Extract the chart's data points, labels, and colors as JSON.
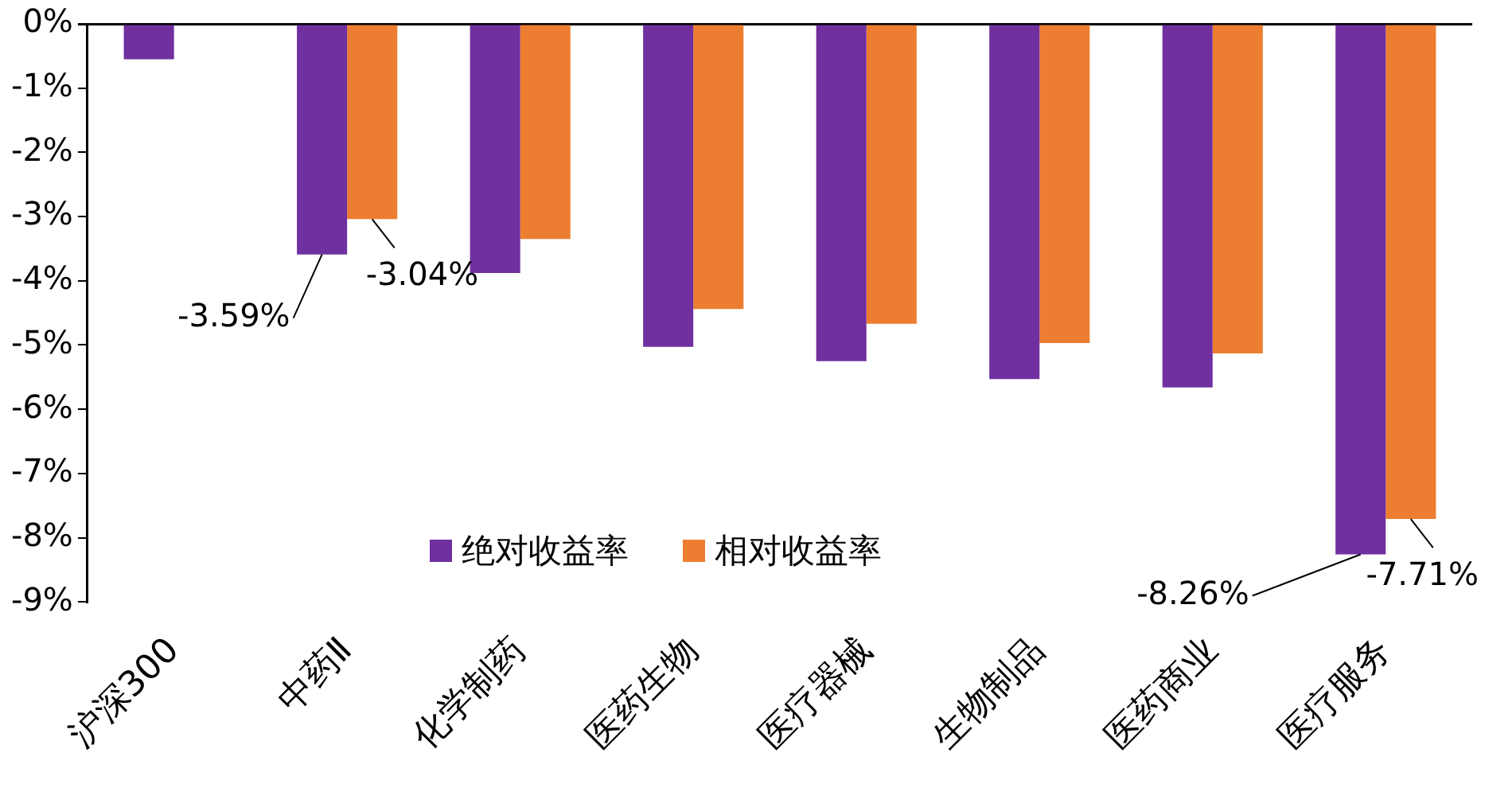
{
  "chart_data": {
    "type": "bar",
    "categories": [
      "沪深300",
      "中药Ⅱ",
      "化学制药",
      "医药生物",
      "医疗器械",
      "生物制品",
      "医药商业",
      "医疗服务"
    ],
    "series": [
      {
        "name": "绝对收益率",
        "color": "#7030a0",
        "values": [
          -0.55,
          -3.59,
          -3.88,
          -5.03,
          -5.25,
          -5.53,
          -5.66,
          -8.26
        ],
        "value_labels": [
          null,
          "-3.59%",
          null,
          null,
          null,
          null,
          null,
          "-8.26%"
        ]
      },
      {
        "name": "相对收益率",
        "color": "#ed7d31",
        "values": [
          null,
          -3.04,
          -3.35,
          -4.44,
          -4.67,
          -4.97,
          -5.13,
          -7.71
        ],
        "value_labels": [
          null,
          "-3.04%",
          null,
          null,
          null,
          null,
          null,
          "-7.71%"
        ]
      }
    ],
    "ylim": [
      -9,
      0
    ],
    "yticks": [
      {
        "value": 0,
        "label": "0%"
      },
      {
        "value": -1,
        "label": "-1%"
      },
      {
        "value": -2,
        "label": "-2%"
      },
      {
        "value": -3,
        "label": "-3%"
      },
      {
        "value": -4,
        "label": "-4%"
      },
      {
        "value": -5,
        "label": "-5%"
      },
      {
        "value": -6,
        "label": "-6%"
      },
      {
        "value": -7,
        "label": "-7%"
      },
      {
        "value": -8,
        "label": "-8%"
      },
      {
        "value": -9,
        "label": "-9%"
      }
    ],
    "legend": "bottom"
  }
}
